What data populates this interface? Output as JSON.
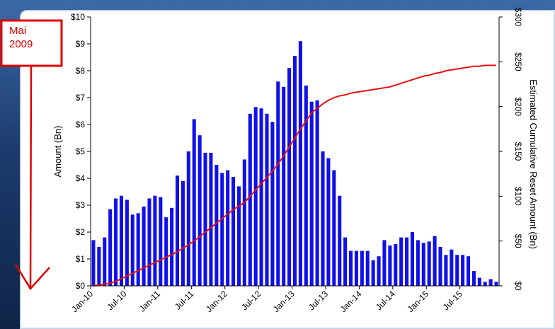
{
  "chart_data": {
    "type": "bar",
    "ylabel": "Amount (Bn)",
    "y2label": "Estimated Cumulative Reset Amount (Bn)",
    "ylim": [
      0,
      10
    ],
    "y2lim": [
      0,
      300
    ],
    "y_ticks": [
      "$0",
      "$1",
      "$2",
      "$3",
      "$4",
      "$5",
      "$6",
      "$7",
      "$8",
      "$9",
      "$10"
    ],
    "y2_ticks": [
      "$0",
      "$50",
      "$100",
      "$150",
      "$200",
      "$250",
      "$300"
    ],
    "x_ticks": [
      {
        "label": "Jan-10",
        "index": 0
      },
      {
        "label": "Jul-10",
        "index": 6
      },
      {
        "label": "Jan-11",
        "index": 12
      },
      {
        "label": "Jul-11",
        "index": 18
      },
      {
        "label": "Jan-12",
        "index": 24
      },
      {
        "label": "Jul-12",
        "index": 30
      },
      {
        "label": "Jan-13",
        "index": 36
      },
      {
        "label": "Jul-13",
        "index": 42
      },
      {
        "label": "Jan-14",
        "index": 48
      },
      {
        "label": "Jul-14",
        "index": 54
      },
      {
        "label": "Jan-15",
        "index": 60
      },
      {
        "label": "Jul-15",
        "index": 66
      }
    ],
    "grid": false,
    "bar_color": "#1010e8",
    "line_color": "#e81010",
    "series": [
      {
        "type": "bar",
        "axis": "left",
        "values": [
          1.7,
          1.45,
          1.8,
          2.85,
          3.25,
          3.35,
          3.2,
          2.65,
          2.7,
          2.95,
          3.25,
          3.35,
          3.3,
          2.55,
          2.9,
          4.1,
          3.9,
          5.0,
          6.2,
          5.6,
          4.95,
          4.95,
          4.5,
          4.2,
          4.3,
          4.05,
          3.7,
          4.7,
          6.4,
          6.65,
          6.6,
          6.4,
          6.1,
          7.6,
          7.4,
          8.1,
          8.55,
          9.1,
          7.45,
          6.85,
          6.9,
          5.0,
          4.75,
          4.3,
          3.35,
          1.8,
          1.3,
          1.3,
          1.3,
          1.3,
          0.95,
          1.1,
          1.7,
          1.5,
          1.55,
          1.8,
          1.8,
          2.0,
          1.7,
          1.6,
          1.65,
          1.85,
          1.45,
          1.15,
          1.35,
          1.15,
          1.15,
          1.1,
          0.55,
          0.3,
          0.15,
          0.25,
          0.15
        ]
      },
      {
        "type": "line",
        "axis": "right",
        "values": [
          0,
          1,
          2,
          3,
          5,
          8,
          11,
          14,
          17,
          20,
          23,
          26,
          29,
          32,
          35,
          38,
          42,
          46,
          50,
          55,
          60,
          65,
          70,
          75,
          80,
          85,
          89,
          93,
          100,
          107,
          114,
          121,
          128,
          136,
          145,
          155,
          165,
          175,
          184,
          193,
          198,
          203,
          207,
          210,
          212,
          213,
          215,
          216,
          217,
          218,
          219,
          220,
          221,
          222,
          224,
          226,
          228,
          230,
          232,
          234,
          235,
          237,
          238,
          240,
          241,
          242,
          243,
          244,
          245,
          245,
          246,
          246,
          246
        ]
      }
    ]
  },
  "annotation": {
    "line1": "Mai",
    "line2": "2009",
    "color": "#e00000"
  }
}
